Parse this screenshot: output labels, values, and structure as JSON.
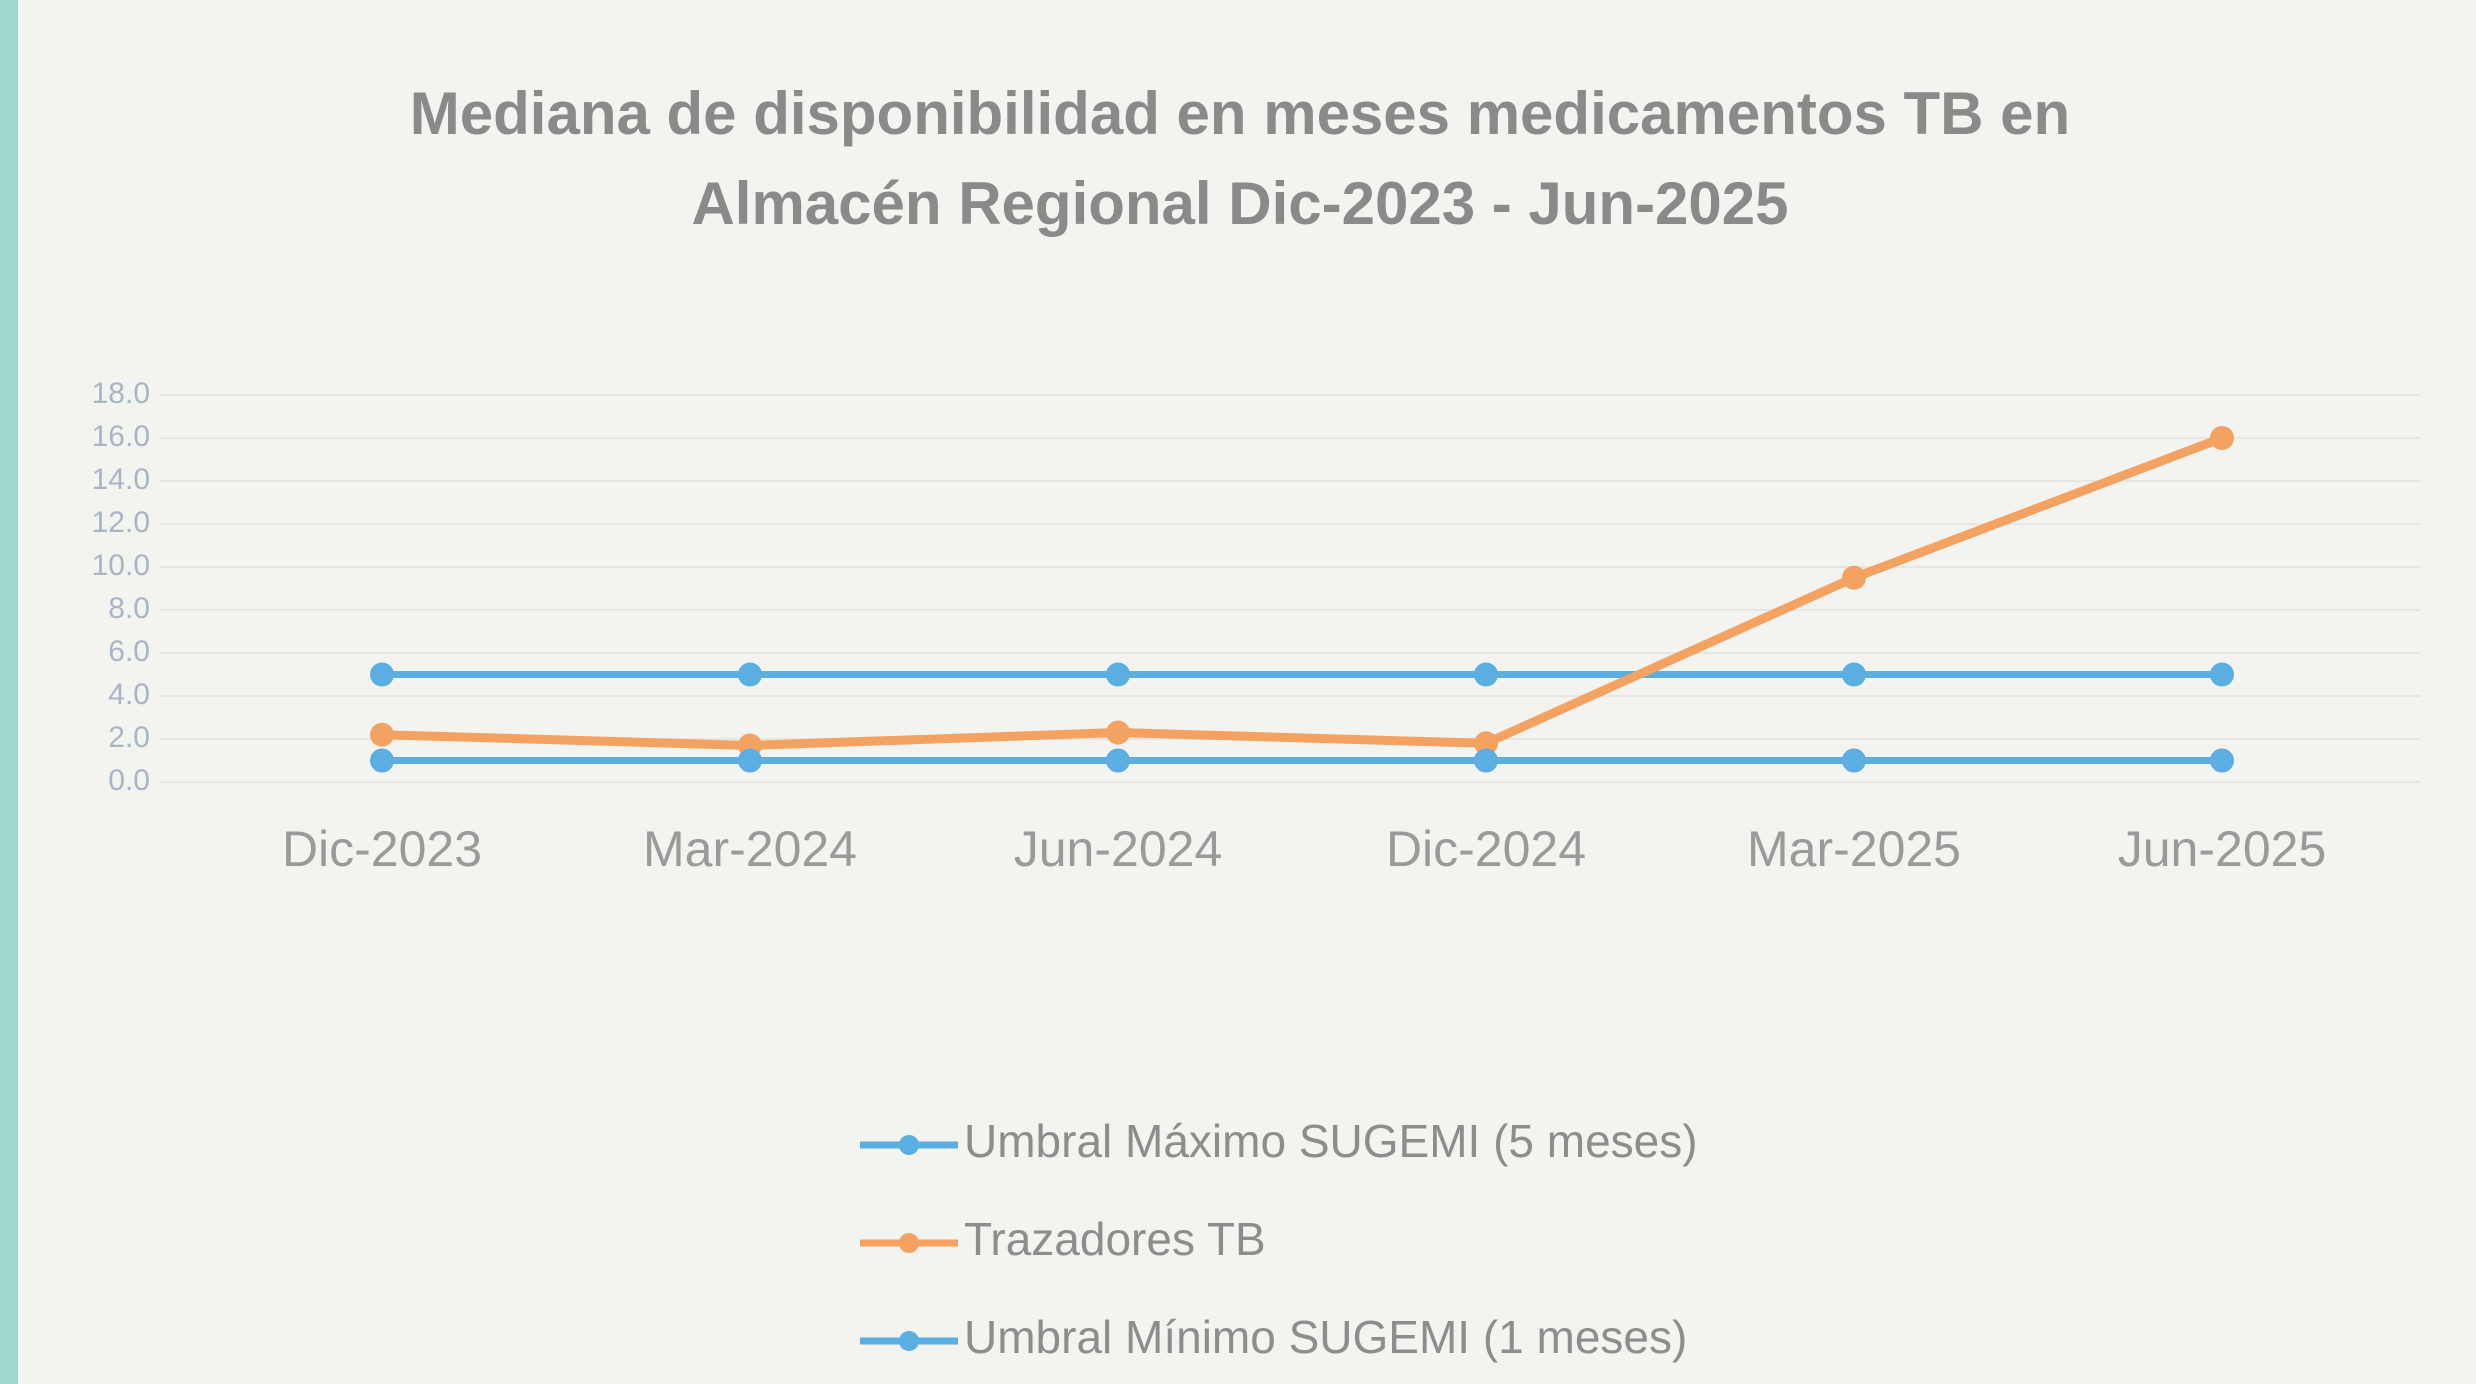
{
  "chart_data": {
    "type": "line",
    "title": [
      "Mediana de disponibilidad en meses medicamentos TB en",
      "Almacén Regional  Dic-2023 - Jun-2025"
    ],
    "categories": [
      "Dic-2023",
      "Mar-2024",
      "Jun-2024",
      "Dic-2024",
      "Mar-2025",
      "Jun-2025"
    ],
    "series": [
      {
        "name": "Umbral Máximo SUGEMI (5 meses)",
        "color": "#5aaee2",
        "values": [
          5,
          5,
          5,
          5,
          5,
          5
        ]
      },
      {
        "name": "Trazadores TB",
        "color": "#f4a262",
        "values": [
          2.2,
          1.7,
          2.3,
          1.8,
          9.5,
          16.0
        ]
      },
      {
        "name": "Umbral Mínimo SUGEMI (1 meses)",
        "color": "#5aaee2",
        "values": [
          1,
          1,
          1,
          1,
          1,
          1
        ]
      }
    ],
    "ylim": [
      0,
      18
    ],
    "yticks": [
      {
        "value": 0,
        "label": "0.0"
      },
      {
        "value": 2,
        "label": "2.0"
      },
      {
        "value": 4,
        "label": "4.0"
      },
      {
        "value": 6,
        "label": "6.0"
      },
      {
        "value": 8,
        "label": "8.0"
      },
      {
        "value": 10,
        "label": "10.0"
      },
      {
        "value": 12,
        "label": "12.0"
      },
      {
        "value": 14,
        "label": "14.0"
      },
      {
        "value": 16,
        "label": "16.0"
      },
      {
        "value": 18,
        "label": "18.0"
      }
    ],
    "grid": true,
    "legend": "bottom"
  }
}
